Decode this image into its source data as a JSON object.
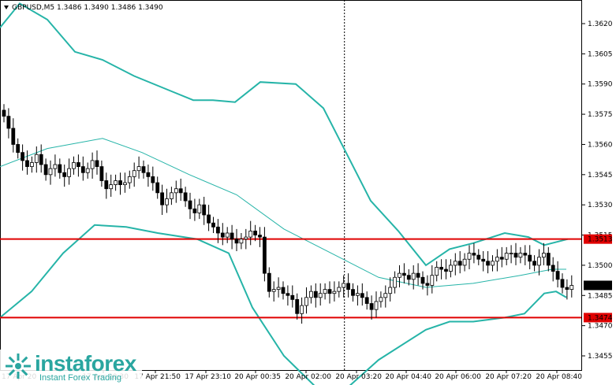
{
  "header": {
    "symbol_line": "GBPUSD,M5 1.3486 1.3490 1.3486 1.3490"
  },
  "logo": {
    "name": "instaforex",
    "tagline": "Instant Forex Trading"
  },
  "price_tags": {
    "current": "1.3490",
    "level_upper": "1.3513",
    "level_lower": "1.3474"
  },
  "colors": {
    "bollinger": "#26b4a8",
    "middle": "#26b4a8",
    "level": "#e00000",
    "candle": "#000000",
    "tag_bg": "#e00000"
  },
  "chart_data": {
    "type": "candlestick",
    "symbol": "GBPUSD",
    "timeframe": "M5",
    "ylim": [
      1.3448,
      1.3632
    ],
    "y_ticks": [
      1.362,
      1.3605,
      1.359,
      1.3575,
      1.356,
      1.3545,
      1.353,
      1.3515,
      1.35,
      1.3485,
      1.347,
      1.3455
    ],
    "x_ticks": [
      "17 Apr 20:30",
      "17 Apr 21:50",
      "17 Apr 23:10",
      "20 Apr 00:35",
      "20 Apr 02:00",
      "20 Apr 03:20",
      "20 Apr 04:40",
      "20 Apr 06:00",
      "20 Apr 07:20",
      "20 Apr 08:40"
    ],
    "x_ticks_partial_left": "17 Apr 20",
    "horizontal_levels": [
      1.3513,
      1.3474
    ],
    "session_separator_after_bar": 73,
    "closes": [
      1.3574,
      1.3568,
      1.356,
      1.3556,
      1.3552,
      1.3549,
      1.3551,
      1.3555,
      1.355,
      1.3545,
      1.3548,
      1.355,
      1.3546,
      1.3544,
      1.3548,
      1.3551,
      1.3549,
      1.3546,
      1.3548,
      1.3552,
      1.3549,
      1.3542,
      1.3538,
      1.354,
      1.3542,
      1.354,
      1.3541,
      1.3544,
      1.3547,
      1.3549,
      1.3546,
      1.3544,
      1.3541,
      1.3536,
      1.353,
      1.3533,
      1.3536,
      1.3538,
      1.3536,
      1.3532,
      1.3528,
      1.3526,
      1.353,
      1.3525,
      1.3521,
      1.3519,
      1.3516,
      1.3514,
      1.3516,
      1.3513,
      1.3511,
      1.3513,
      1.3514,
      1.3517,
      1.3515,
      1.3514,
      1.3496,
      1.3487,
      1.3488,
      1.3489,
      1.3486,
      1.3485,
      1.3483,
      1.3476,
      1.348,
      1.3484,
      1.3487,
      1.3484,
      1.3486,
      1.3488,
      1.3486,
      1.3487,
      1.3489,
      1.3491,
      1.3488,
      1.3485,
      1.3486,
      1.3484,
      1.3481,
      1.3478,
      1.3482,
      1.3484,
      1.3486,
      1.3489,
      1.3494,
      1.3496,
      1.3495,
      1.3493,
      1.3496,
      1.3494,
      1.3491,
      1.349,
      1.3495,
      1.3499,
      1.3498,
      1.3497,
      1.35,
      1.3502,
      1.35,
      1.3503,
      1.3506,
      1.3505,
      1.3503,
      1.3502,
      1.35,
      1.3502,
      1.3504,
      1.3503,
      1.3506,
      1.3506,
      1.3504,
      1.3506,
      1.3505,
      1.3502,
      1.35,
      1.3504,
      1.3506,
      1.35,
      1.3497,
      1.3493,
      1.3489,
      1.3488,
      1.349
    ],
    "upper_band": [
      [
        0,
        1.3618
      ],
      [
        25,
        1.363
      ],
      [
        60,
        1.3622
      ],
      [
        95,
        1.3606
      ],
      [
        130,
        1.3602
      ],
      [
        170,
        1.3594
      ],
      [
        220,
        1.3586
      ],
      [
        245,
        1.3582
      ],
      [
        270,
        1.3582
      ],
      [
        298,
        1.3581
      ],
      [
        330,
        1.3591
      ],
      [
        375,
        1.359
      ],
      [
        410,
        1.3578
      ],
      [
        440,
        1.3555
      ],
      [
        470,
        1.3532
      ],
      [
        505,
        1.3517
      ],
      [
        540,
        1.35
      ],
      [
        570,
        1.3508
      ],
      [
        600,
        1.3511
      ],
      [
        640,
        1.3516
      ],
      [
        670,
        1.3514
      ],
      [
        690,
        1.351
      ],
      [
        720,
        1.3513
      ]
    ],
    "middle_band": [
      [
        0,
        1.3549
      ],
      [
        60,
        1.3558
      ],
      [
        130,
        1.3563
      ],
      [
        180,
        1.3556
      ],
      [
        240,
        1.3545
      ],
      [
        300,
        1.3535
      ],
      [
        360,
        1.3518
      ],
      [
        420,
        1.3506
      ],
      [
        480,
        1.3494
      ],
      [
        540,
        1.3489
      ],
      [
        600,
        1.3491
      ],
      [
        660,
        1.3495
      ],
      [
        700,
        1.3498
      ],
      [
        718,
        1.3498
      ]
    ],
    "lower_band": [
      [
        0,
        1.3474
      ],
      [
        40,
        1.3487
      ],
      [
        80,
        1.3506
      ],
      [
        120,
        1.352
      ],
      [
        160,
        1.3519
      ],
      [
        200,
        1.3516
      ],
      [
        250,
        1.3513
      ],
      [
        290,
        1.3506
      ],
      [
        320,
        1.3479
      ],
      [
        360,
        1.3455
      ],
      [
        420,
        1.3432
      ],
      [
        480,
        1.3453
      ],
      [
        540,
        1.3468
      ],
      [
        570,
        1.3472
      ],
      [
        600,
        1.3472
      ],
      [
        640,
        1.3474
      ],
      [
        665,
        1.3476
      ],
      [
        690,
        1.3486
      ],
      [
        705,
        1.3487
      ],
      [
        718,
        1.3484
      ]
    ]
  }
}
